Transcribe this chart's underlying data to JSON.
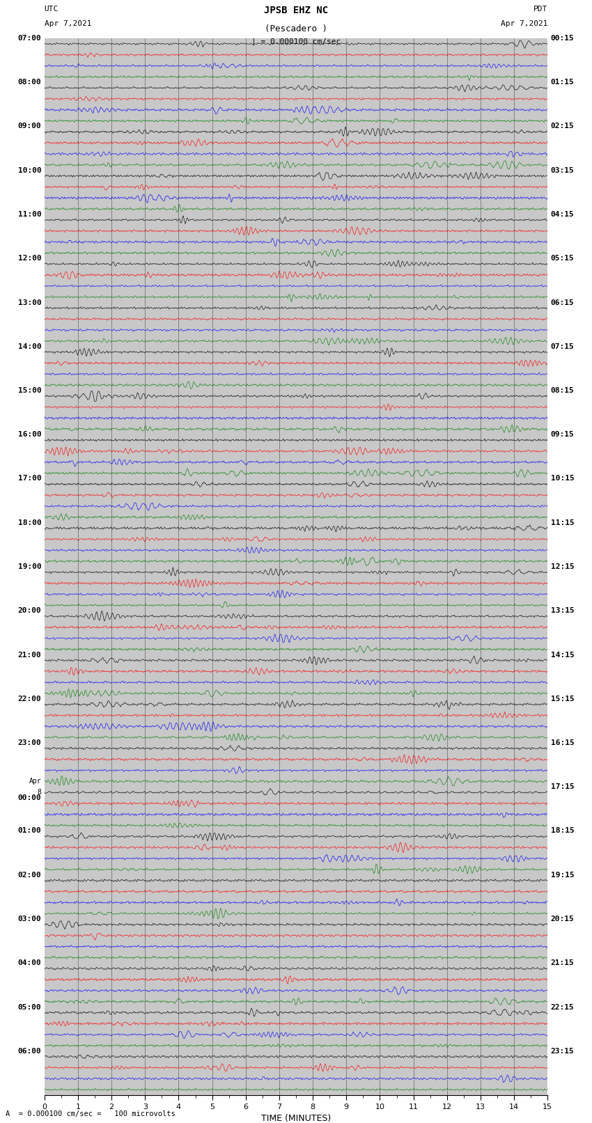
{
  "title_line1": "JPSB EHZ NC",
  "title_line2": "(Pescadero )",
  "scale_text": "| = 0.000100 cm/sec",
  "bottom_text": "A  = 0.000100 cm/sec =   100 microvolts",
  "utc_label": "UTC",
  "utc_date": "Apr 7,2021",
  "pdt_label": "PDT",
  "pdt_date": "Apr 7,2021",
  "xlabel": "TIME (MINUTES)",
  "colors": [
    "black",
    "red",
    "blue",
    "green"
  ],
  "num_rows": 96,
  "background_color": "#c8c8c8",
  "plot_bg_color": "#c8c8c8",
  "random_seed": 42,
  "noise_amplitude": 0.12,
  "event_amplitude": 0.4,
  "left_times_utc": [
    "07:00",
    "",
    "",
    "",
    "08:00",
    "",
    "",
    "",
    "09:00",
    "",
    "",
    "",
    "10:00",
    "",
    "",
    "",
    "11:00",
    "",
    "",
    "",
    "12:00",
    "",
    "",
    "",
    "13:00",
    "",
    "",
    "",
    "14:00",
    "",
    "",
    "",
    "15:00",
    "",
    "",
    "",
    "16:00",
    "",
    "",
    "",
    "17:00",
    "",
    "",
    "",
    "18:00",
    "",
    "",
    "",
    "19:00",
    "",
    "",
    "",
    "20:00",
    "",
    "",
    "",
    "21:00",
    "",
    "",
    "",
    "22:00",
    "",
    "",
    "",
    "23:00",
    "",
    "",
    "",
    "Apr 8",
    "00:00",
    "",
    "",
    "01:00",
    "",
    "",
    "",
    "02:00",
    "",
    "",
    "",
    "03:00",
    "",
    "",
    "",
    "04:00",
    "",
    "",
    "",
    "05:00",
    "",
    "",
    "",
    "06:00",
    "",
    "",
    ""
  ],
  "right_times_pdt": [
    "00:15",
    "",
    "",
    "",
    "01:15",
    "",
    "",
    "",
    "02:15",
    "",
    "",
    "",
    "03:15",
    "",
    "",
    "",
    "04:15",
    "",
    "",
    "",
    "05:15",
    "",
    "",
    "",
    "06:15",
    "",
    "",
    "",
    "07:15",
    "",
    "",
    "",
    "08:15",
    "",
    "",
    "",
    "09:15",
    "",
    "",
    "",
    "10:15",
    "",
    "",
    "",
    "11:15",
    "",
    "",
    "",
    "12:15",
    "",
    "",
    "",
    "13:15",
    "",
    "",
    "",
    "14:15",
    "",
    "",
    "",
    "15:15",
    "",
    "",
    "",
    "16:15",
    "",
    "",
    "",
    "17:15",
    "",
    "",
    "",
    "18:15",
    "",
    "",
    "",
    "19:15",
    "",
    "",
    "",
    "20:15",
    "",
    "",
    "",
    "21:15",
    "",
    "",
    "",
    "22:15",
    "",
    "",
    "",
    "23:15",
    "",
    "",
    ""
  ]
}
